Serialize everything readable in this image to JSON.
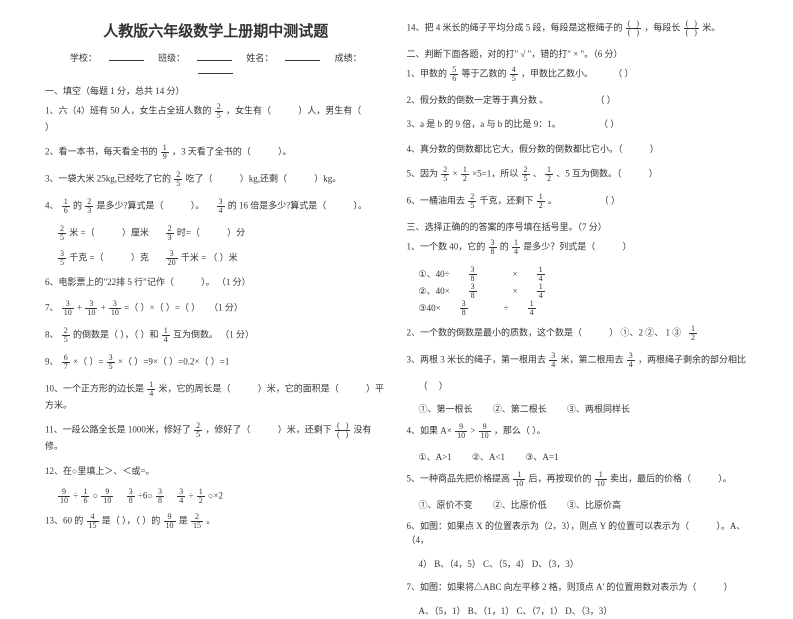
{
  "title": "人教版六年级数学上册期中测试题",
  "info": {
    "school": "学校：",
    "class": "班级：",
    "name": "姓名：",
    "score": "成绩："
  },
  "secA": "一、填空（每题 1 分，总共 14 分）",
  "q1": {
    "a": "1、六（4）班有 50 人，女生占全班人数的",
    "b": "，女生有（",
    "c": "）人，男生有（",
    "d": "）"
  },
  "q2": {
    "a": "2、看一本书，每天看全书的",
    "b": "，3 天看了全书的（",
    "c": "）。"
  },
  "q3": {
    "a": "3、一袋大米 25kg,已经吃了它的",
    "b": "吃了（",
    "c": "）kg,还剩（",
    "d": "）kg。"
  },
  "q4": {
    "a": "4、",
    "b": "的",
    "c": "是多少?算式是（",
    "d": "）。",
    "e": "的 16 倍是多少?算式是（",
    "f": "）。"
  },
  "q5a": {
    "a": "米 =（",
    "b": "）厘米",
    "c": "时=（",
    "d": "）分"
  },
  "q5b": {
    "a": "千克 =（",
    "b": "）克",
    "c": "千米 = （  ）米"
  },
  "q6": "6、电影票上的\"22排 5 行\"记作（",
  "q6b": "）。      （1 分）",
  "q7": {
    "a": "7、",
    "b": "+",
    "c": "+",
    "d": " =（    ）×（    ）=（    ）",
    "e": "（1 分）"
  },
  "q8": {
    "a": "8、",
    "b": "的倒数是（    ），（    ）和",
    "c": "互为倒数。      （1 分）"
  },
  "q9": {
    "a": "9、",
    "b": "×（    ）=",
    "c": "×（    ）=9×（    ）=0.2×（    ）=1"
  },
  "q10": {
    "a": "10、一个正方形的边长是",
    "b": "米，它的周长是（",
    "c": "）米，它的面积是（",
    "d": "）平方米。"
  },
  "q11": {
    "a": "11、一段公路全长是 1000米，修好了",
    "b": "，修好了（",
    "c": "）米，还剩下",
    "d": "没有修。"
  },
  "q12": "12、在○里填上＞、＜或=。",
  "q12a": {
    "a": "÷",
    "b": "○",
    "c": "÷6○",
    "d": "÷",
    "e": "○×2"
  },
  "q13": {
    "a": "13、60 的",
    "b": "是（    ），（    ）的",
    "c": "是",
    "d": "。"
  },
  "q14": {
    "a": "14、把 4 米长的绳子平均分成 5 段，每段是这根绳子的",
    "b": "，每段长",
    "c": "米。"
  },
  "secB": "二、判断下面各题，对的打\" √ \"，错的打\" × \"。（6 分）",
  "b1": {
    "a": "1、甲数的",
    "b": "等于乙数的",
    "c": "，甲数比乙数小。",
    "d": "（       ）"
  },
  "b2": {
    "a": "2、假分数的倒数一定等于真分数 。",
    "b": "（       ）"
  },
  "b3": {
    "a": "3、a 是 b 的 9 倍，a 与 b 的比是 9：1。",
    "b": "（       ）"
  },
  "b4": {
    "a": "4、真分数的倒数都比它大，假分数的倒数都比它小。（",
    "b": "）"
  },
  "b5": {
    "a": "5、因为",
    "b": "×",
    "c": "×5=1，所以",
    "d": "、",
    "e": "、5 互为倒数。（",
    "f": "）"
  },
  "b6": {
    "a": "6、一桶油用去",
    "b": "千克，还剩下",
    "c": "。",
    "d": "（       ）"
  },
  "secC": "三、选择正确的的答案的序号填在括号里。（7 分）",
  "c1": {
    "a": "1、一个数 40，它的",
    "b": "的",
    "c": "是多少？列式是（",
    "d": "）"
  },
  "c1o": {
    "a": "①、40÷",
    "b": "×",
    "c": "②、40×",
    "d": "×",
    "e": "③40×",
    "f": "÷"
  },
  "c2": {
    "a": "2、一个数的倒数是最小的质数，这个数是（",
    "b": "）  ①、2   ②、 1    ③"
  },
  "c3": {
    "a": "3、两根 3 米长的绳子，第一根用去",
    "b": "米，第二根用去",
    "c": "，两根绳子剩余的部分相比"
  },
  "c3o": {
    "a": "①、第一根长",
    "b": "②、第二根长",
    "c": "③、两根同样长"
  },
  "c4": {
    "a": "4、如果 A×",
    "b": ">",
    "c": "，那么（    ）。"
  },
  "c4o": {
    "a": "①、A>1",
    "b": "②、A<1",
    "c": "③、A=1"
  },
  "c5": {
    "a": "5、一种商品先把价格提高",
    "b": "后，再按现价的",
    "c": "卖出，最后的价格（",
    "d": "）。"
  },
  "c5o": {
    "a": "①、原价不变",
    "b": "②、比原价低",
    "c": "③、比原价高"
  },
  "c6": {
    "a": "6、如图：如果点 X 的位置表示为（2，3），则点 Y 的位置可以表示为（",
    "b": "）。A、（4，"
  },
  "c6b": "4）  B、（4，5）  C、（5，4）  D、（3，3）",
  "c7": {
    "a": "7、如图：如果将△ABC 向左平移 2 格，则顶点 A' 的位置用数对表示为（",
    "b": "）"
  },
  "c7b": "A、（5，1）  B、（1，1）  C、（7，1）  D、（3，3）"
}
